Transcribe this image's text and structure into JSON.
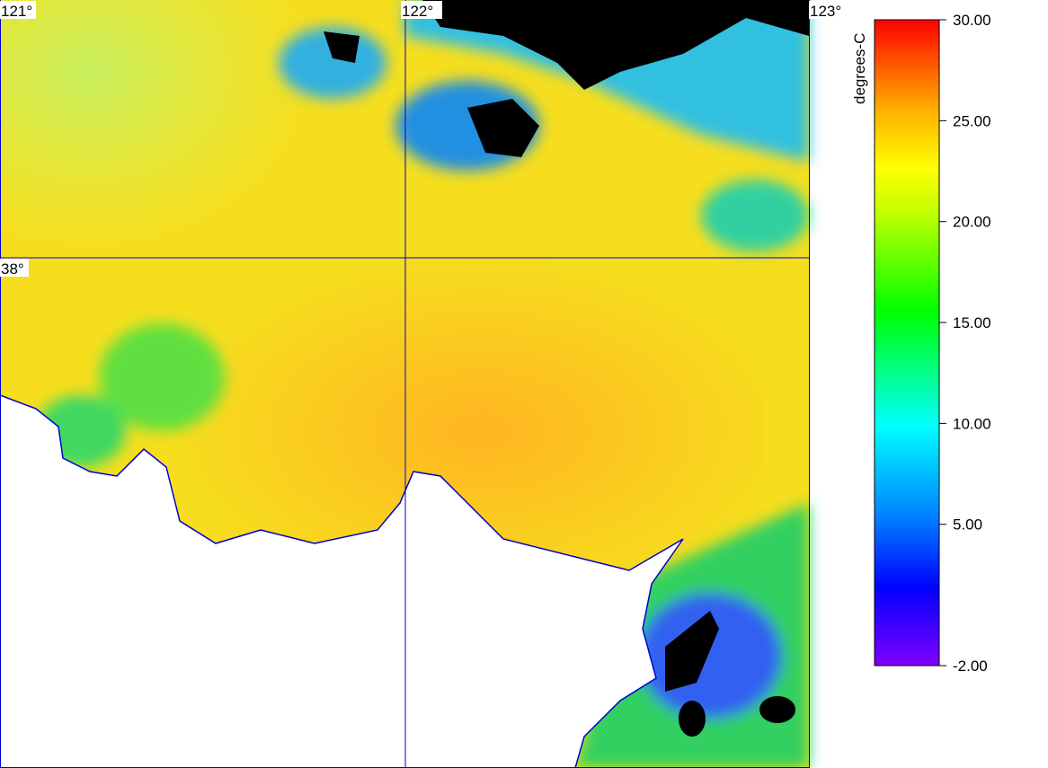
{
  "map": {
    "lon_labels": [
      "121°",
      "122°",
      "123°"
    ],
    "lat_labels": [
      "38°"
    ]
  },
  "colorbar": {
    "label": "degrees-C",
    "range": [
      -2,
      30
    ],
    "ticks": [
      {
        "value": 30,
        "label": "30.00"
      },
      {
        "value": 25,
        "label": "25.00"
      },
      {
        "value": 20,
        "label": "20.00"
      },
      {
        "value": 15,
        "label": "15.00"
      },
      {
        "value": 10,
        "label": "10.00"
      },
      {
        "value": 5,
        "label": "5.00"
      },
      {
        "value": -2,
        "label": "-2.00"
      }
    ]
  }
}
